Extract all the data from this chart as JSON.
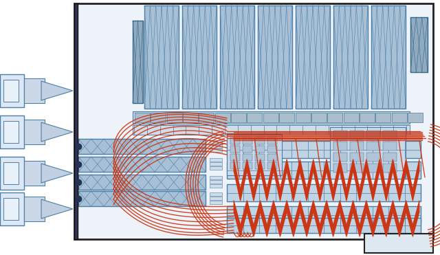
{
  "bg_color": "#ffffff",
  "blue_light": "#b8cfe0",
  "blue_mid": "#6a9fc0",
  "blue_dark": "#2a5f8a",
  "blue_line": "#4a7fa8",
  "black": "#111111",
  "red": "#cc3311",
  "fig_w": 6.4,
  "fig_h": 3.71,
  "dpi": 100,
  "sp_lw": 1.0,
  "sp_alpha": 0.9
}
